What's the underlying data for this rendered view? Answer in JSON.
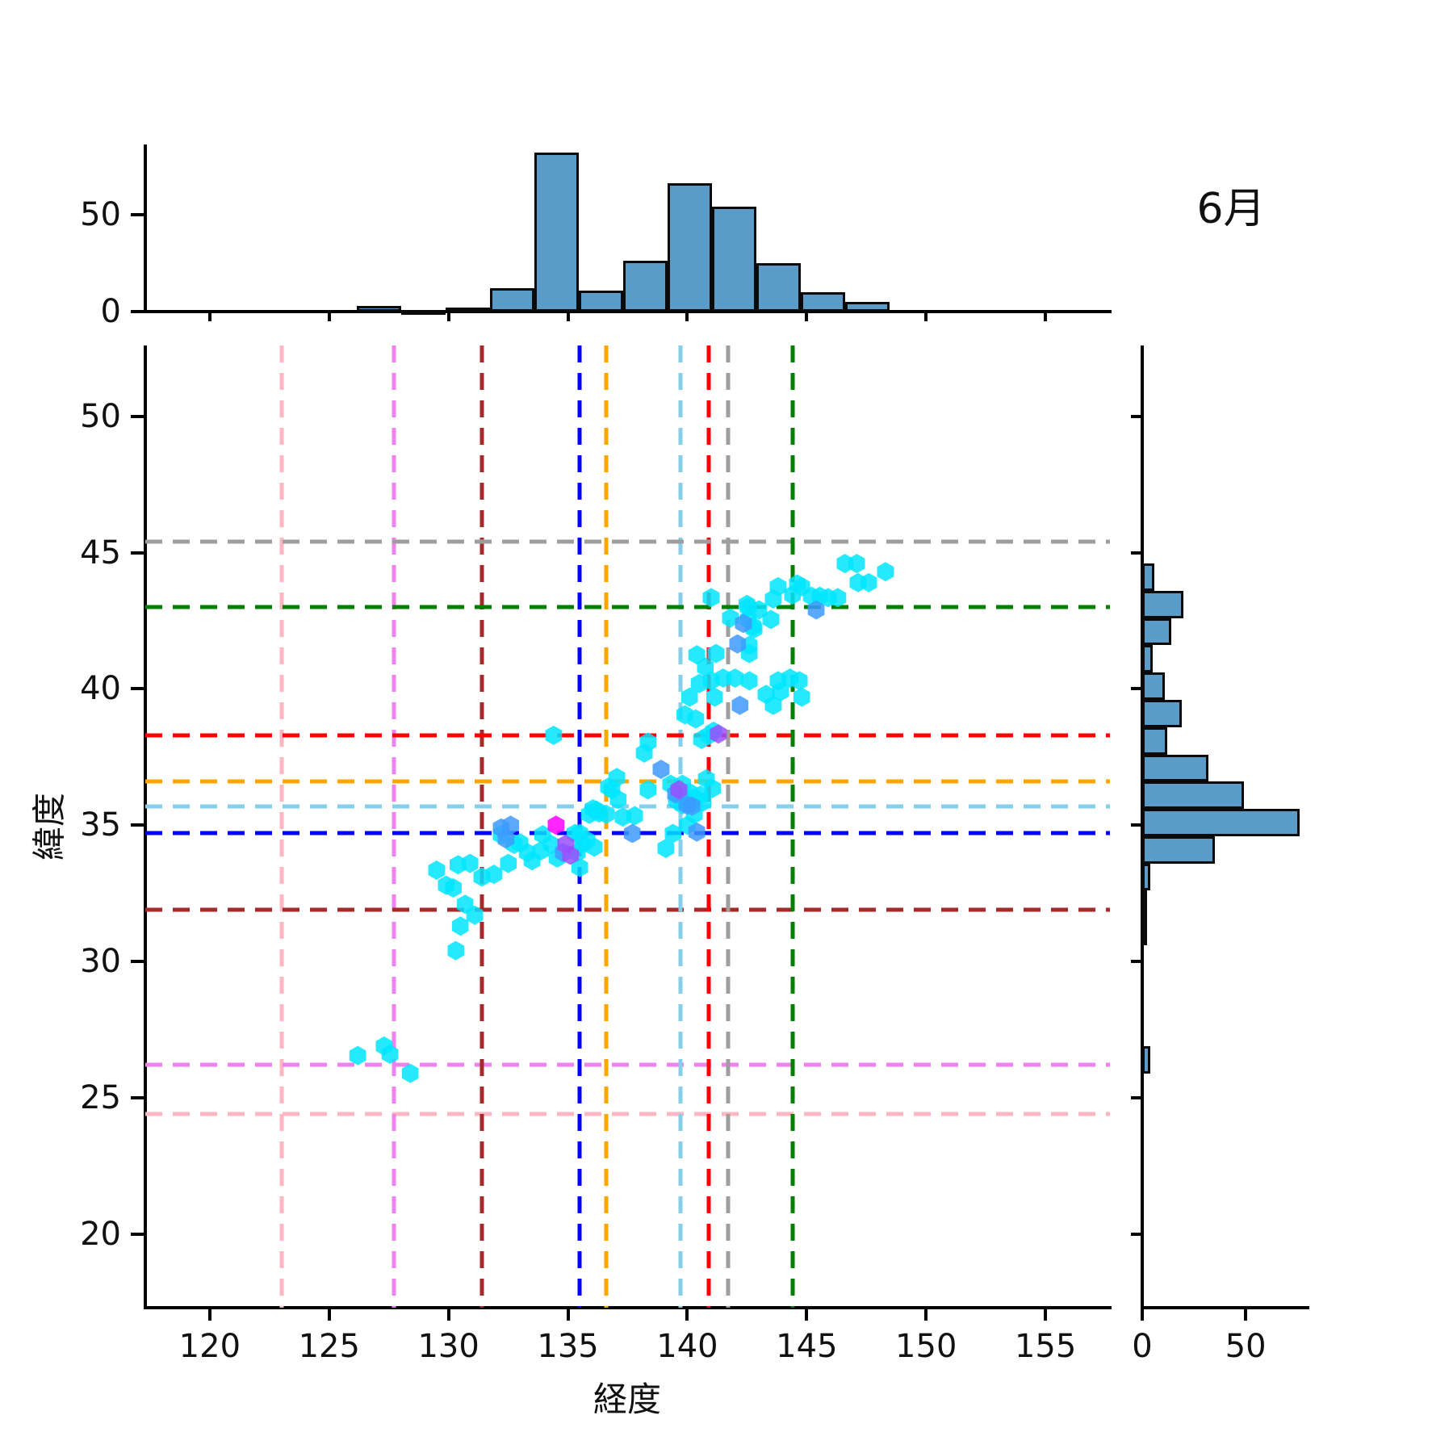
{
  "title": "6月",
  "chart_data": {
    "type": "scatter",
    "title": "6月",
    "xlabel": "経度",
    "ylabel": "緯度",
    "xlim": [
      117.3,
      157.7
    ],
    "ylim": [
      17.3,
      52.6
    ],
    "xticks": [
      120,
      125,
      130,
      135,
      140,
      145,
      150,
      155
    ],
    "yticks": [
      20,
      25,
      30,
      35,
      40,
      45,
      50
    ],
    "grid": false,
    "legend": "none",
    "colors": {
      "hist_fill": "#5b9bc8",
      "hist_edge": "#0a0a0a",
      "point_cyan": "#00e5ff",
      "point_blue": "#3d9aff",
      "point_purple": "#9b4dff",
      "point_magenta": "#ff00ff"
    },
    "series": [
      {
        "name": "points-cyan",
        "color": "#00e5ff",
        "points": [
          [
            126.2,
            26.55
          ],
          [
            127.3,
            26.9
          ],
          [
            127.55,
            26.6
          ],
          [
            128.4,
            25.9
          ],
          [
            130.3,
            30.4
          ],
          [
            129.5,
            33.35
          ],
          [
            129.9,
            32.8
          ],
          [
            130.4,
            33.55
          ],
          [
            130.2,
            32.7
          ],
          [
            130.7,
            32.1
          ],
          [
            131.1,
            31.7
          ],
          [
            130.5,
            31.3
          ],
          [
            131.4,
            33.1
          ],
          [
            130.9,
            33.6
          ],
          [
            131.9,
            33.2
          ],
          [
            132.5,
            33.6
          ],
          [
            133.3,
            34.0
          ],
          [
            133.5,
            33.7
          ],
          [
            133.85,
            34.05
          ],
          [
            134.3,
            34.3
          ],
          [
            134.55,
            33.8
          ],
          [
            133.0,
            34.35
          ],
          [
            133.95,
            34.65
          ],
          [
            132.2,
            34.65
          ],
          [
            132.75,
            34.3
          ],
          [
            135.4,
            34.0
          ],
          [
            135.6,
            34.3
          ],
          [
            135.3,
            34.7
          ],
          [
            135.5,
            34.7
          ],
          [
            135.9,
            35.4
          ],
          [
            135.5,
            33.45
          ],
          [
            136.1,
            34.2
          ],
          [
            135.8,
            34.45
          ],
          [
            136.7,
            36.4
          ],
          [
            136.85,
            36.3
          ],
          [
            137.1,
            35.95
          ],
          [
            136.6,
            35.4
          ],
          [
            137.3,
            35.3
          ],
          [
            137.8,
            35.35
          ],
          [
            138.2,
            37.65
          ],
          [
            138.35,
            36.3
          ],
          [
            136.2,
            35.55
          ],
          [
            136.05,
            35.6
          ],
          [
            136.3,
            35.45
          ],
          [
            137.05,
            36.75
          ],
          [
            139.3,
            36.5
          ],
          [
            139.55,
            35.9
          ],
          [
            139.8,
            35.75
          ],
          [
            140.3,
            35.4
          ],
          [
            140.0,
            35.0
          ],
          [
            139.4,
            34.7
          ],
          [
            139.1,
            34.15
          ],
          [
            139.8,
            36.5
          ],
          [
            140.55,
            36.1
          ],
          [
            141.05,
            36.35
          ],
          [
            140.8,
            36.7
          ],
          [
            139.9,
            36.0
          ],
          [
            140.1,
            36.2
          ],
          [
            139.6,
            36.1
          ],
          [
            140.3,
            36.0
          ],
          [
            139.95,
            35.85
          ],
          [
            140.65,
            35.85
          ],
          [
            134.4,
            38.3
          ],
          [
            140.9,
            38.3
          ],
          [
            140.6,
            38.15
          ],
          [
            141.1,
            38.45
          ],
          [
            140.35,
            38.9
          ],
          [
            139.9,
            39.05
          ],
          [
            141.15,
            39.7
          ],
          [
            140.1,
            39.7
          ],
          [
            140.5,
            40.2
          ],
          [
            141.0,
            40.3
          ],
          [
            141.5,
            40.4
          ],
          [
            140.75,
            40.8
          ],
          [
            140.4,
            41.25
          ],
          [
            141.2,
            41.3
          ],
          [
            138.35,
            38.05
          ],
          [
            142.0,
            40.4
          ],
          [
            142.6,
            40.3
          ],
          [
            143.8,
            40.3
          ],
          [
            144.3,
            40.4
          ],
          [
            144.7,
            40.3
          ],
          [
            143.9,
            39.9
          ],
          [
            143.3,
            39.8
          ],
          [
            144.8,
            39.7
          ],
          [
            143.6,
            39.4
          ],
          [
            141.0,
            43.35
          ],
          [
            141.8,
            42.6
          ],
          [
            142.6,
            41.6
          ],
          [
            142.6,
            41.3
          ],
          [
            142.5,
            43.1
          ],
          [
            142.55,
            43.0
          ],
          [
            142.55,
            42.55
          ],
          [
            143.5,
            42.55
          ],
          [
            142.75,
            42.3
          ],
          [
            142.8,
            42.2
          ],
          [
            143.8,
            43.75
          ],
          [
            144.4,
            43.45
          ],
          [
            144.8,
            43.75
          ],
          [
            144.6,
            43.85
          ],
          [
            143.6,
            43.3
          ],
          [
            145.2,
            43.4
          ],
          [
            145.55,
            43.4
          ],
          [
            145.9,
            43.35
          ],
          [
            146.3,
            43.35
          ],
          [
            146.6,
            44.6
          ],
          [
            147.1,
            44.6
          ],
          [
            148.3,
            44.3
          ],
          [
            147.15,
            43.9
          ],
          [
            147.6,
            43.9
          ],
          [
            143.0,
            42.9
          ]
        ]
      },
      {
        "name": "points-blue",
        "color": "#3d9aff",
        "points": [
          [
            132.4,
            34.5
          ],
          [
            132.2,
            34.9
          ],
          [
            132.6,
            35.0
          ],
          [
            134.8,
            34.0
          ],
          [
            137.7,
            34.7
          ],
          [
            138.9,
            37.05
          ],
          [
            140.2,
            35.7
          ],
          [
            140.4,
            34.75
          ],
          [
            139.5,
            36.15
          ],
          [
            139.99,
            35.74
          ],
          [
            142.1,
            41.65
          ],
          [
            142.35,
            42.4
          ],
          [
            145.4,
            42.9
          ],
          [
            142.2,
            39.4
          ]
        ]
      },
      {
        "name": "points-purple",
        "color": "#9b4dff",
        "points": [
          [
            134.9,
            34.3
          ],
          [
            135.1,
            33.9
          ],
          [
            139.65,
            36.3
          ],
          [
            141.3,
            38.35
          ]
        ]
      },
      {
        "name": "points-magenta",
        "color": "#ff00ff",
        "points": [
          [
            134.5,
            35.0
          ]
        ]
      }
    ],
    "reference_lines": [
      {
        "color": "#ffb6c1",
        "lon": 123.0,
        "lat": 24.4
      },
      {
        "color": "#ee82ee",
        "lon": 127.7,
        "lat": 26.2
      },
      {
        "color": "#a52a2a",
        "lon": 131.4,
        "lat": 31.9
      },
      {
        "color": "#0000ff",
        "lon": 135.5,
        "lat": 34.7
      },
      {
        "color": "#ffa500",
        "lon": 136.6,
        "lat": 36.6
      },
      {
        "color": "#87ceeb",
        "lon": 139.7,
        "lat": 35.7
      },
      {
        "color": "#ff0000",
        "lon": 140.9,
        "lat": 38.3
      },
      {
        "color": "#9e9e9e",
        "lon": 141.7,
        "lat": 45.4
      },
      {
        "color": "#008000",
        "lon": 144.4,
        "lat": 43.0
      }
    ],
    "top_histogram": {
      "type": "bar",
      "bin_start": 126.15,
      "bin_width": 1.86,
      "values": [
        3,
        1,
        2,
        12,
        82,
        11,
        26,
        66,
        54,
        25,
        10,
        5
      ],
      "ymax": 86,
      "yticks": [
        0,
        50
      ]
    },
    "right_histogram": {
      "type": "bar",
      "bins": [
        {
          "from": 43.6,
          "to": 44.6,
          "value": 6
        },
        {
          "from": 42.6,
          "to": 43.6,
          "value": 20
        },
        {
          "from": 41.6,
          "to": 42.6,
          "value": 14
        },
        {
          "from": 40.6,
          "to": 41.6,
          "value": 5
        },
        {
          "from": 39.6,
          "to": 40.6,
          "value": 11
        },
        {
          "from": 38.6,
          "to": 39.6,
          "value": 19
        },
        {
          "from": 37.6,
          "to": 38.6,
          "value": 12
        },
        {
          "from": 36.6,
          "to": 37.6,
          "value": 32
        },
        {
          "from": 35.6,
          "to": 36.6,
          "value": 49
        },
        {
          "from": 34.6,
          "to": 35.6,
          "value": 76
        },
        {
          "from": 33.6,
          "to": 34.6,
          "value": 35
        },
        {
          "from": 32.6,
          "to": 33.6,
          "value": 4
        },
        {
          "from": 31.6,
          "to": 32.6,
          "value": 2
        },
        {
          "from": 30.6,
          "to": 31.6,
          "value": 1
        },
        {
          "from": 25.9,
          "to": 26.9,
          "value": 4
        }
      ],
      "xmax": 80,
      "xticks": [
        0,
        50
      ]
    }
  }
}
